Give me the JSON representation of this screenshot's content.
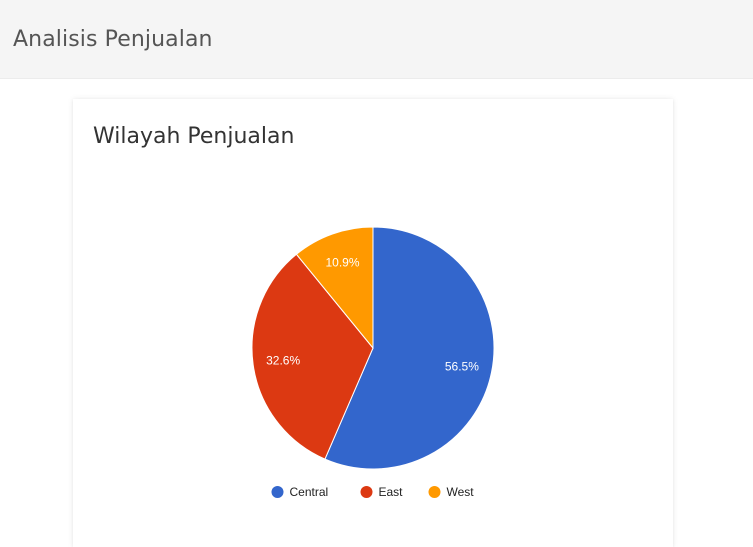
{
  "header": {
    "title": "Analisis Penjualan"
  },
  "card": {
    "title": "Wilayah Penjualan"
  },
  "chart_data": {
    "type": "pie",
    "title": "Wilayah Penjualan",
    "legend_position": "bottom",
    "slices": [
      {
        "name": "Central",
        "value": 56.5,
        "label": "56.5%",
        "color": "#3366cc"
      },
      {
        "name": "East",
        "value": 32.6,
        "label": "32.6%",
        "color": "#dc3912"
      },
      {
        "name": "West",
        "value": 10.9,
        "label": "10.9%",
        "color": "#ff9900"
      }
    ]
  }
}
